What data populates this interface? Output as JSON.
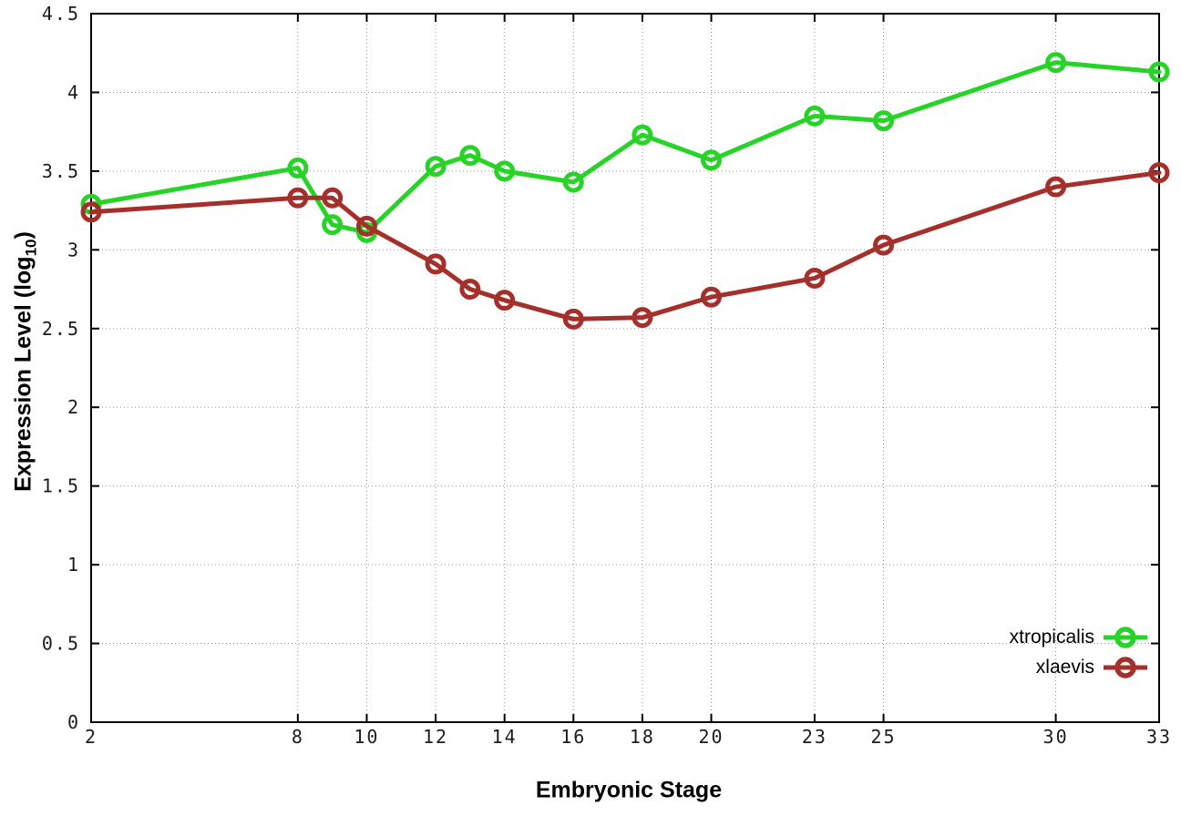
{
  "chart_data": {
    "type": "line",
    "title": "",
    "xlabel": "Embryonic Stage",
    "ylabel": "Expression Level (log10)",
    "ylabel_parts": {
      "main": "Expression Level (log",
      "sub": "10",
      "end": ")"
    },
    "xlim": [
      2,
      33
    ],
    "ylim": [
      0,
      4.5
    ],
    "xticks": [
      2,
      8,
      10,
      12,
      14,
      16,
      18,
      20,
      23,
      25,
      30,
      33
    ],
    "yticks": [
      0,
      0.5,
      1,
      1.5,
      2,
      2.5,
      3,
      3.5,
      4,
      4.5
    ],
    "grid": true,
    "legend_position": "bottom-right",
    "x": [
      2,
      8,
      9,
      10,
      12,
      13,
      14,
      16,
      18,
      20,
      23,
      25,
      30,
      33
    ],
    "series": [
      {
        "name": "xtropicalis",
        "color": "#26d326",
        "values": [
          3.29,
          3.52,
          3.16,
          3.11,
          3.53,
          3.6,
          3.5,
          3.43,
          3.73,
          3.57,
          3.85,
          3.82,
          4.19,
          4.13
        ]
      },
      {
        "name": "xlaevis",
        "color": "#a5302b",
        "values": [
          3.24,
          3.33,
          3.33,
          3.15,
          2.91,
          2.75,
          2.68,
          2.56,
          2.57,
          2.7,
          2.82,
          3.03,
          3.4,
          3.49
        ]
      }
    ],
    "style": {
      "grid_color": "#9a9a9a",
      "border_color": "#000000",
      "line_width": 5,
      "marker_radius": 9,
      "marker_stroke": 5
    }
  }
}
